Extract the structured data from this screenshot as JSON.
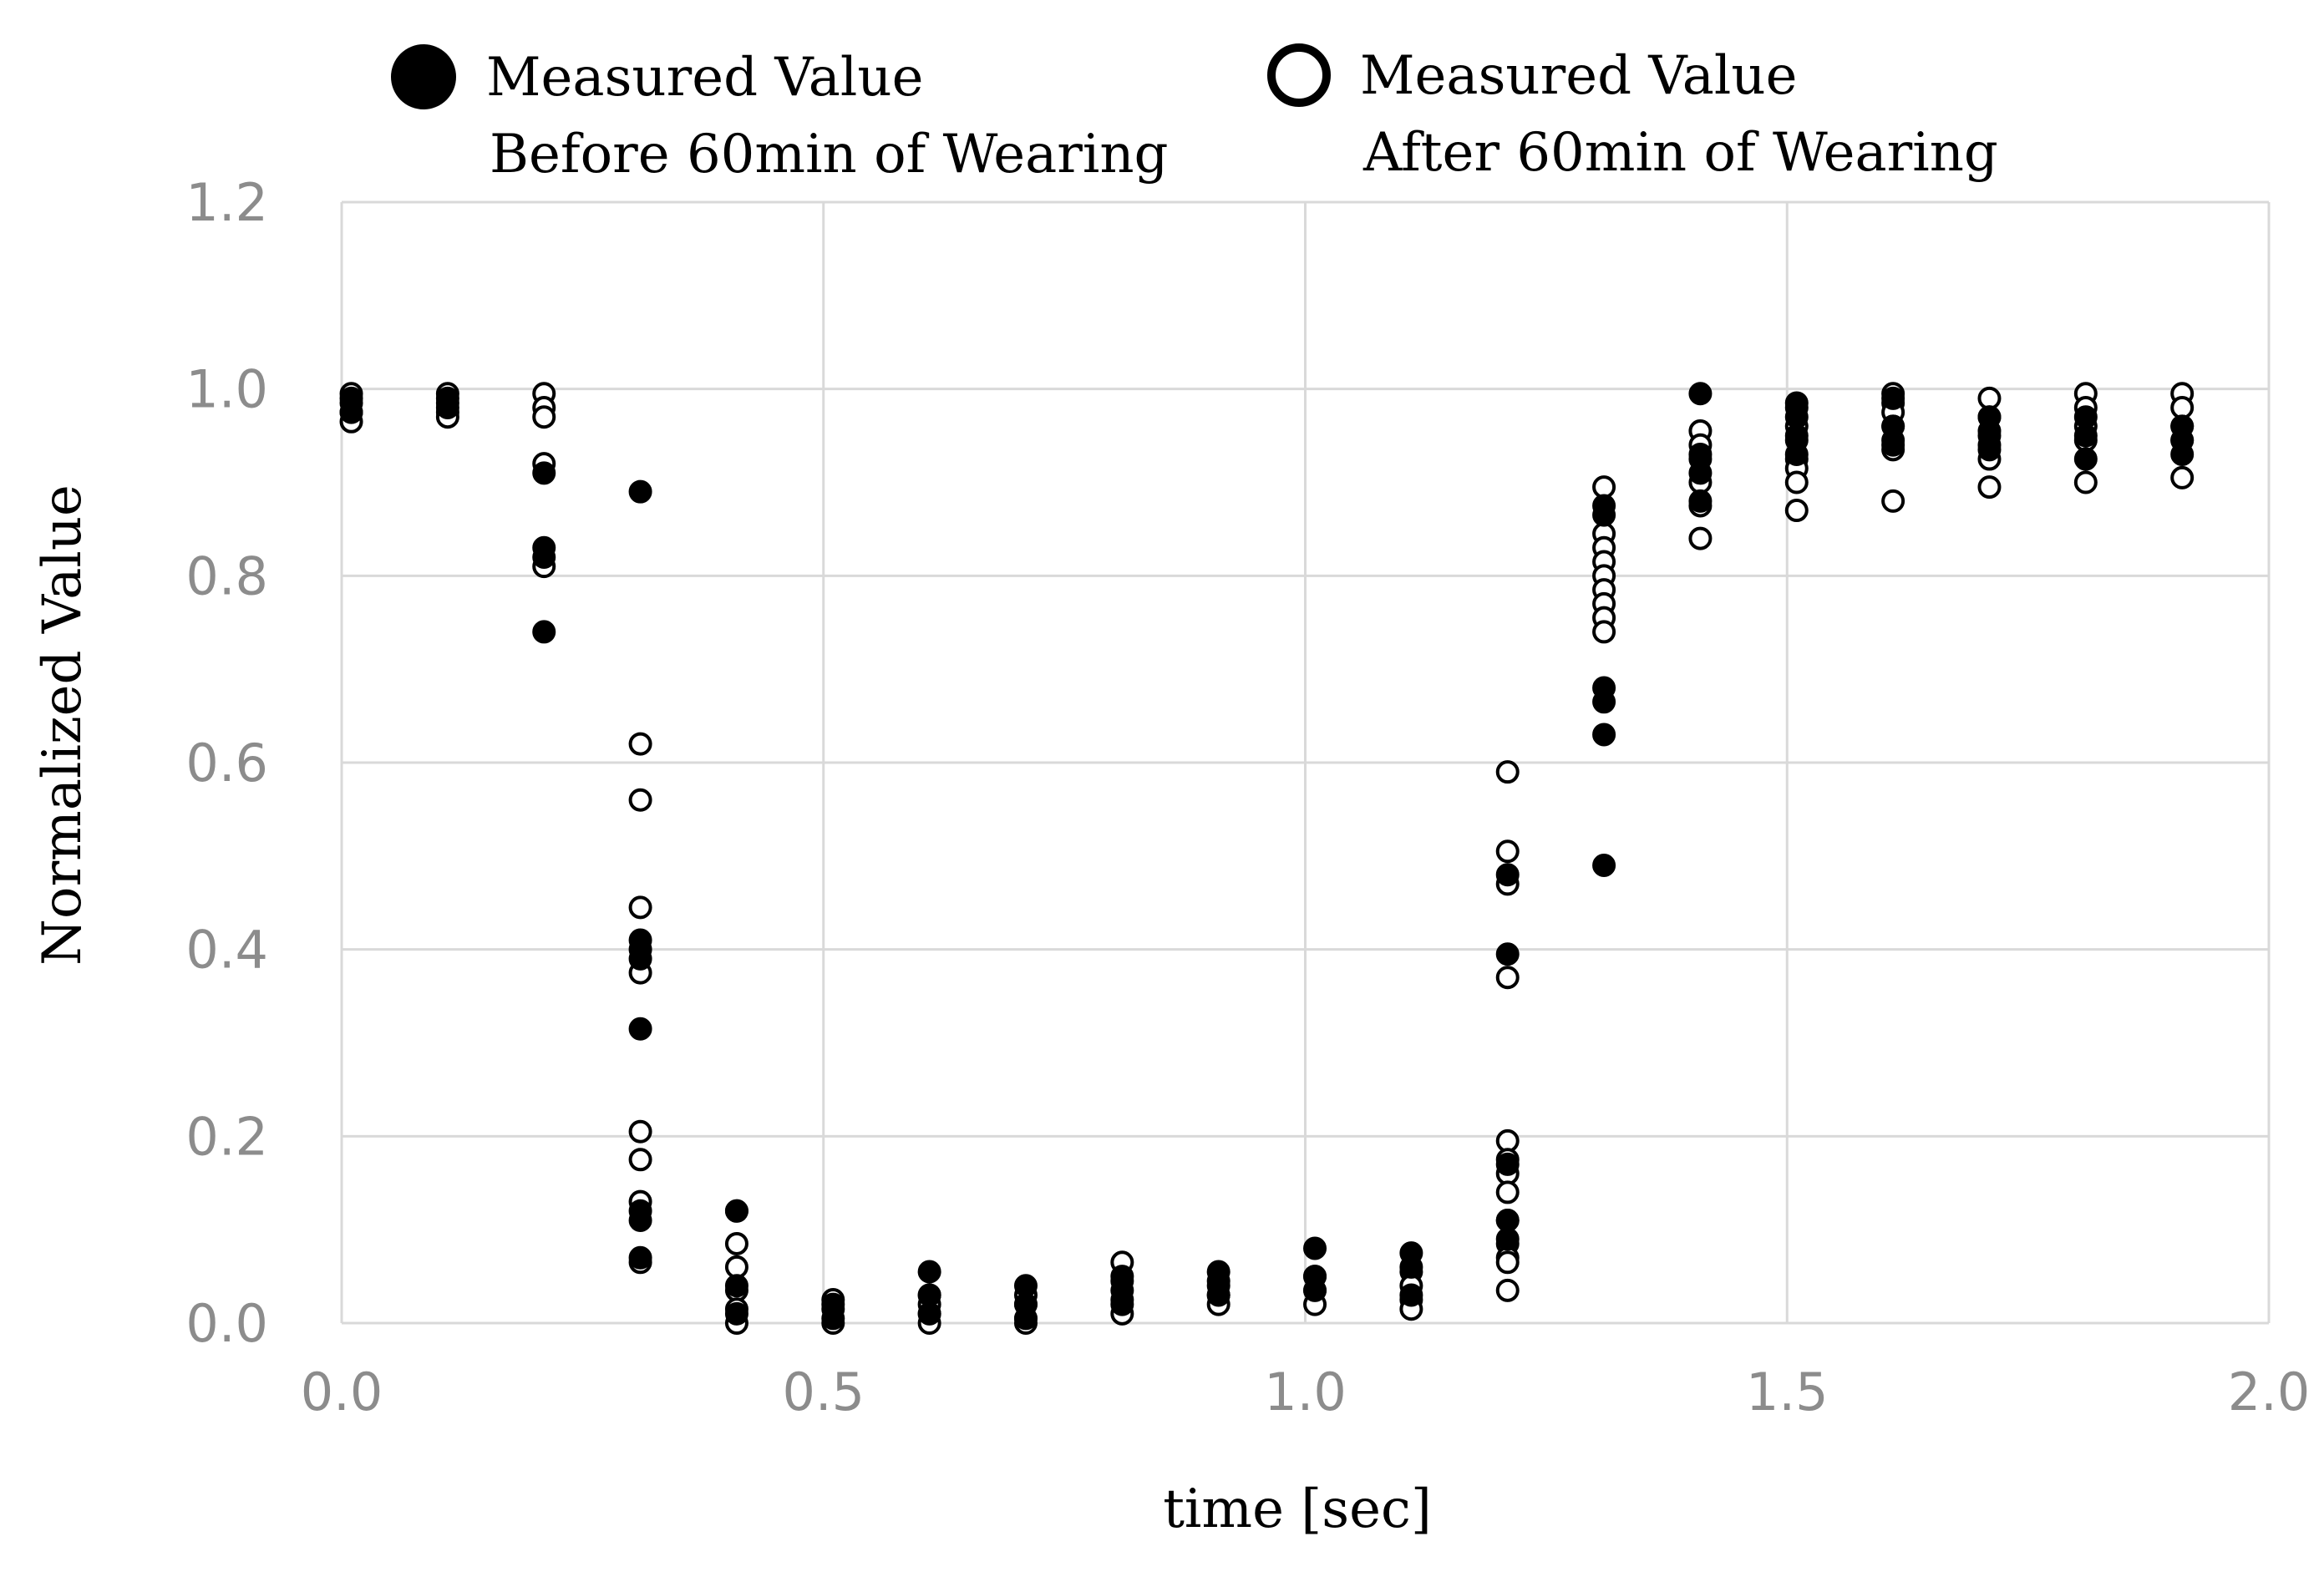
{
  "chart_data": {
    "type": "scatter",
    "title": "",
    "xlabel": "time [sec]",
    "ylabel": "Normalized Value",
    "xlim": [
      0.0,
      2.0
    ],
    "ylim": [
      0.0,
      1.2
    ],
    "xticks": [
      "0.0",
      "0.5",
      "1.0",
      "1.5",
      "2.0"
    ],
    "yticks": [
      "0.0",
      "0.2",
      "0.4",
      "0.6",
      "0.8",
      "1.0",
      "1.2"
    ],
    "xtick_values": [
      0.0,
      0.5,
      1.0,
      1.5,
      2.0
    ],
    "ytick_values": [
      0.0,
      0.2,
      0.4,
      0.6,
      0.8,
      1.0,
      1.2
    ],
    "grid": true,
    "legend_position": "top",
    "legend": [
      {
        "marker": "filled",
        "line1": "Measured Value",
        "line2": "Before 60min of Wearing"
      },
      {
        "marker": "open",
        "line1": "Measured Value",
        "line2": "After 60min of Wearing"
      }
    ],
    "series": [
      {
        "name": "Measured Value Before 60min of Wearing",
        "marker": "filled",
        "points": [
          [
            0.01,
            0.99
          ],
          [
            0.01,
            0.975
          ],
          [
            0.11,
            0.99
          ],
          [
            0.11,
            0.98
          ],
          [
            0.21,
            0.91
          ],
          [
            0.21,
            0.83
          ],
          [
            0.21,
            0.82
          ],
          [
            0.21,
            0.74
          ],
          [
            0.31,
            0.89
          ],
          [
            0.31,
            0.41
          ],
          [
            0.31,
            0.4
          ],
          [
            0.31,
            0.39
          ],
          [
            0.31,
            0.315
          ],
          [
            0.31,
            0.12
          ],
          [
            0.31,
            0.11
          ],
          [
            0.31,
            0.07
          ],
          [
            0.41,
            0.12
          ],
          [
            0.41,
            0.04
          ],
          [
            0.41,
            0.01
          ],
          [
            0.51,
            0.02
          ],
          [
            0.51,
            0.005
          ],
          [
            0.61,
            0.055
          ],
          [
            0.61,
            0.03
          ],
          [
            0.61,
            0.01
          ],
          [
            0.71,
            0.04
          ],
          [
            0.71,
            0.02
          ],
          [
            0.71,
            0.005
          ],
          [
            0.81,
            0.05
          ],
          [
            0.81,
            0.035
          ],
          [
            0.81,
            0.02
          ],
          [
            0.91,
            0.055
          ],
          [
            0.91,
            0.04
          ],
          [
            0.91,
            0.03
          ],
          [
            1.01,
            0.08
          ],
          [
            1.01,
            0.05
          ],
          [
            1.01,
            0.035
          ],
          [
            1.11,
            0.075
          ],
          [
            1.11,
            0.06
          ],
          [
            1.11,
            0.03
          ],
          [
            1.21,
            0.48
          ],
          [
            1.21,
            0.395
          ],
          [
            1.21,
            0.17
          ],
          [
            1.21,
            0.11
          ],
          [
            1.21,
            0.09
          ],
          [
            1.31,
            0.875
          ],
          [
            1.31,
            0.865
          ],
          [
            1.31,
            0.68
          ],
          [
            1.31,
            0.665
          ],
          [
            1.31,
            0.63
          ],
          [
            1.31,
            0.49
          ],
          [
            1.41,
            0.995
          ],
          [
            1.41,
            0.93
          ],
          [
            1.41,
            0.91
          ],
          [
            1.41,
            0.88
          ],
          [
            1.51,
            0.985
          ],
          [
            1.51,
            0.97
          ],
          [
            1.51,
            0.95
          ],
          [
            1.51,
            0.93
          ],
          [
            1.61,
            0.99
          ],
          [
            1.61,
            0.96
          ],
          [
            1.61,
            0.94
          ],
          [
            1.71,
            0.97
          ],
          [
            1.71,
            0.95
          ],
          [
            1.71,
            0.935
          ],
          [
            1.81,
            0.97
          ],
          [
            1.81,
            0.95
          ],
          [
            1.81,
            0.925
          ],
          [
            1.91,
            0.96
          ],
          [
            1.91,
            0.945
          ],
          [
            1.91,
            0.93
          ]
        ]
      },
      {
        "name": "Measured Value After 60min of Wearing",
        "marker": "open",
        "points": [
          [
            0.01,
            0.995
          ],
          [
            0.01,
            0.985
          ],
          [
            0.01,
            0.975
          ],
          [
            0.01,
            0.965
          ],
          [
            0.11,
            0.995
          ],
          [
            0.11,
            0.985
          ],
          [
            0.11,
            0.975
          ],
          [
            0.11,
            0.97
          ],
          [
            0.21,
            0.995
          ],
          [
            0.21,
            0.98
          ],
          [
            0.21,
            0.97
          ],
          [
            0.21,
            0.92
          ],
          [
            0.21,
            0.81
          ],
          [
            0.31,
            0.62
          ],
          [
            0.31,
            0.56
          ],
          [
            0.31,
            0.445
          ],
          [
            0.31,
            0.375
          ],
          [
            0.31,
            0.205
          ],
          [
            0.31,
            0.175
          ],
          [
            0.31,
            0.13
          ],
          [
            0.31,
            0.065
          ],
          [
            0.41,
            0.12
          ],
          [
            0.41,
            0.085
          ],
          [
            0.41,
            0.06
          ],
          [
            0.41,
            0.035
          ],
          [
            0.41,
            0.015
          ],
          [
            0.41,
            0.0
          ],
          [
            0.51,
            0.025
          ],
          [
            0.51,
            0.015
          ],
          [
            0.51,
            0.0
          ],
          [
            0.61,
            0.03
          ],
          [
            0.61,
            0.02
          ],
          [
            0.61,
            0.01
          ],
          [
            0.61,
            0.0
          ],
          [
            0.71,
            0.03
          ],
          [
            0.71,
            0.02
          ],
          [
            0.71,
            0.005
          ],
          [
            0.71,
            0.0
          ],
          [
            0.81,
            0.065
          ],
          [
            0.81,
            0.045
          ],
          [
            0.81,
            0.025
          ],
          [
            0.81,
            0.01
          ],
          [
            0.91,
            0.045
          ],
          [
            0.91,
            0.03
          ],
          [
            0.91,
            0.02
          ],
          [
            1.01,
            0.05
          ],
          [
            1.01,
            0.035
          ],
          [
            1.01,
            0.02
          ],
          [
            1.11,
            0.055
          ],
          [
            1.11,
            0.04
          ],
          [
            1.11,
            0.025
          ],
          [
            1.11,
            0.015
          ],
          [
            1.21,
            0.59
          ],
          [
            1.21,
            0.505
          ],
          [
            1.21,
            0.47
          ],
          [
            1.21,
            0.37
          ],
          [
            1.21,
            0.195
          ],
          [
            1.21,
            0.175
          ],
          [
            1.21,
            0.16
          ],
          [
            1.21,
            0.14
          ],
          [
            1.21,
            0.11
          ],
          [
            1.21,
            0.085
          ],
          [
            1.21,
            0.07
          ],
          [
            1.21,
            0.065
          ],
          [
            1.21,
            0.035
          ],
          [
            1.31,
            0.895
          ],
          [
            1.31,
            0.845
          ],
          [
            1.31,
            0.83
          ],
          [
            1.31,
            0.815
          ],
          [
            1.31,
            0.8
          ],
          [
            1.31,
            0.785
          ],
          [
            1.31,
            0.77
          ],
          [
            1.31,
            0.755
          ],
          [
            1.31,
            0.74
          ],
          [
            1.41,
            0.955
          ],
          [
            1.41,
            0.94
          ],
          [
            1.41,
            0.925
          ],
          [
            1.41,
            0.9
          ],
          [
            1.41,
            0.875
          ],
          [
            1.41,
            0.84
          ],
          [
            1.51,
            0.98
          ],
          [
            1.51,
            0.96
          ],
          [
            1.51,
            0.945
          ],
          [
            1.51,
            0.925
          ],
          [
            1.51,
            0.915
          ],
          [
            1.51,
            0.9
          ],
          [
            1.51,
            0.87
          ],
          [
            1.61,
            0.995
          ],
          [
            1.61,
            0.985
          ],
          [
            1.61,
            0.975
          ],
          [
            1.61,
            0.96
          ],
          [
            1.61,
            0.945
          ],
          [
            1.61,
            0.935
          ],
          [
            1.61,
            0.88
          ],
          [
            1.71,
            0.99
          ],
          [
            1.71,
            0.97
          ],
          [
            1.71,
            0.955
          ],
          [
            1.71,
            0.94
          ],
          [
            1.71,
            0.925
          ],
          [
            1.71,
            0.895
          ],
          [
            1.81,
            0.995
          ],
          [
            1.81,
            0.98
          ],
          [
            1.81,
            0.96
          ],
          [
            1.81,
            0.945
          ],
          [
            1.81,
            0.9
          ],
          [
            1.91,
            0.995
          ],
          [
            1.91,
            0.98
          ],
          [
            1.91,
            0.96
          ],
          [
            1.91,
            0.945
          ],
          [
            1.91,
            0.905
          ]
        ]
      }
    ]
  }
}
